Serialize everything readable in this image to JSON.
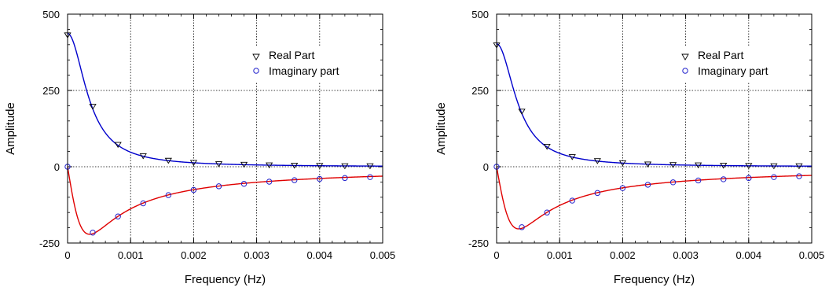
{
  "chart_data": [
    {
      "type": "line",
      "title": "",
      "xlabel": "Frequency (Hz)",
      "ylabel": "Amplitude",
      "xlim": [
        0,
        0.005
      ],
      "ylim": [
        -250,
        500
      ],
      "x_ticks": [
        "0",
        "0.001",
        "0.002",
        "0.003",
        "0.004",
        "0.005"
      ],
      "y_ticks": [
        "-250",
        "0",
        "250",
        "500"
      ],
      "grid": "dotted",
      "legend_position": "upper-right",
      "series": [
        {
          "name": "Real Part",
          "marker": "triangle-down",
          "color": "#0000cc",
          "x": [
            0,
            0.0004,
            0.0008,
            0.0012,
            0.0016,
            0.002,
            0.0024,
            0.0028,
            0.0032,
            0.0036,
            0.004,
            0.0044,
            0.0048
          ],
          "values": [
            432,
            198,
            73,
            36,
            21,
            14,
            10,
            8,
            6,
            5,
            4,
            3,
            3
          ]
        },
        {
          "name": "Imaginary part",
          "marker": "circle",
          "color": "#e00000",
          "x": [
            0,
            0.0004,
            0.0008,
            0.0012,
            0.0016,
            0.002,
            0.0024,
            0.0028,
            0.0032,
            0.0036,
            0.004,
            0.0044,
            0.0048
          ],
          "values": [
            0,
            -216,
            -163,
            -120,
            -93,
            -76,
            -64,
            -56,
            -49,
            -44,
            -40,
            -37,
            -34
          ]
        }
      ]
    },
    {
      "type": "line",
      "title": "",
      "xlabel": "Frequency (Hz)",
      "ylabel": "Amplitude",
      "xlim": [
        0,
        0.005
      ],
      "ylim": [
        -250,
        500
      ],
      "x_ticks": [
        "0",
        "0.001",
        "0.002",
        "0.003",
        "0.004",
        "0.005"
      ],
      "y_ticks": [
        "-250",
        "0",
        "250",
        "500"
      ],
      "grid": "dotted",
      "legend_position": "upper-right",
      "series": [
        {
          "name": "Real Part",
          "marker": "triangle-down",
          "color": "#0000cc",
          "x": [
            0,
            0.0004,
            0.0008,
            0.0012,
            0.0016,
            0.002,
            0.0024,
            0.0028,
            0.0032,
            0.0036,
            0.004,
            0.0044,
            0.0048
          ],
          "values": [
            399,
            182,
            67,
            33,
            20,
            13,
            9,
            7,
            6,
            5,
            4,
            3,
            3
          ]
        },
        {
          "name": "Imaginary part",
          "marker": "circle",
          "color": "#e00000",
          "x": [
            0,
            0.0004,
            0.0008,
            0.0012,
            0.0016,
            0.002,
            0.0024,
            0.0028,
            0.0032,
            0.0036,
            0.004,
            0.0044,
            0.0048
          ],
          "values": [
            0,
            -198,
            -150,
            -111,
            -86,
            -70,
            -59,
            -51,
            -45,
            -41,
            -37,
            -34,
            -31
          ]
        }
      ]
    }
  ]
}
